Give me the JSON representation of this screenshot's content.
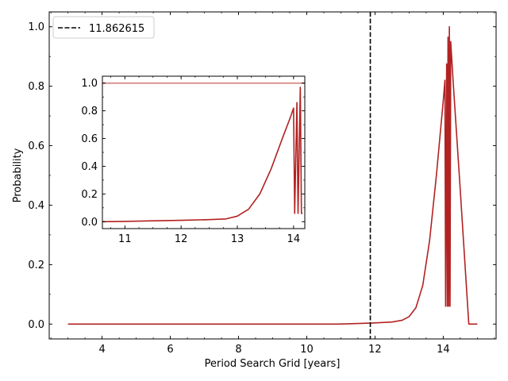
{
  "chart_data": [
    {
      "type": "line",
      "title": "",
      "xlabel": "Period Search Grid [years]",
      "ylabel": "Probability",
      "xlim": [
        2.45,
        15.55
      ],
      "ylim": [
        -0.05,
        1.05
      ],
      "xticks": [
        4,
        6,
        8,
        10,
        12,
        14
      ],
      "yticks": [
        0.0,
        0.2,
        0.4,
        0.6,
        0.8,
        1.0
      ],
      "xticklabels": [
        "4",
        "6",
        "8",
        "10",
        "12",
        "14"
      ],
      "yticklabels": [
        "0.0",
        "0.2",
        "0.4",
        "0.6",
        "0.8",
        "1.0"
      ],
      "grid": false,
      "legend": {
        "placement": "upper-left",
        "entries": [
          {
            "label": "11.862615",
            "style": "dashed",
            "color": "#000000"
          }
        ]
      },
      "vline": {
        "x": 11.862615,
        "style": "dashed",
        "color": "#000000"
      },
      "series": [
        {
          "color": "#b22222",
          "x": [
            3.0,
            10.9,
            11.5,
            12.0,
            12.5,
            12.8,
            13.0,
            13.2,
            13.4,
            13.6,
            13.8,
            14.0,
            14.05,
            14.07,
            14.1,
            14.12,
            14.14,
            14.16,
            14.18,
            14.2,
            14.22,
            14.3,
            14.5,
            14.7,
            14.75,
            15.0
          ],
          "y": [
            0.0,
            0.0,
            0.002,
            0.004,
            0.007,
            0.013,
            0.025,
            0.055,
            0.13,
            0.28,
            0.5,
            0.75,
            0.82,
            0.06,
            0.875,
            0.06,
            0.965,
            0.06,
            1.0,
            0.06,
            0.95,
            0.8,
            0.45,
            0.09,
            0.0,
            0.0
          ]
        }
      ]
    },
    {
      "type": "line",
      "title": "",
      "xlabel": "",
      "ylabel": "",
      "xlim": [
        10.6,
        14.2
      ],
      "ylim": [
        -0.05,
        1.05
      ],
      "xticks": [
        11,
        12,
        13,
        14
      ],
      "yticks": [
        0.0,
        0.2,
        0.4,
        0.6,
        0.8,
        1.0
      ],
      "xticklabels": [
        "11",
        "12",
        "13",
        "14"
      ],
      "yticklabels": [
        "0.0",
        "0.2",
        "0.4",
        "0.6",
        "0.8",
        "1.0"
      ],
      "grid": false,
      "hline": {
        "y": 1.0,
        "color": "#d9948f"
      },
      "series": [
        {
          "color": "#b22222",
          "x": [
            10.6,
            11.0,
            11.5,
            12.0,
            12.5,
            12.8,
            13.0,
            13.2,
            13.4,
            13.6,
            13.8,
            13.95,
            14.0,
            14.02,
            14.06,
            14.08,
            14.12,
            14.14,
            14.16
          ],
          "y": [
            0.0,
            0.002,
            0.006,
            0.01,
            0.015,
            0.02,
            0.04,
            0.09,
            0.2,
            0.38,
            0.6,
            0.76,
            0.82,
            0.06,
            0.86,
            0.06,
            0.97,
            0.06,
            0.06
          ]
        }
      ]
    }
  ]
}
